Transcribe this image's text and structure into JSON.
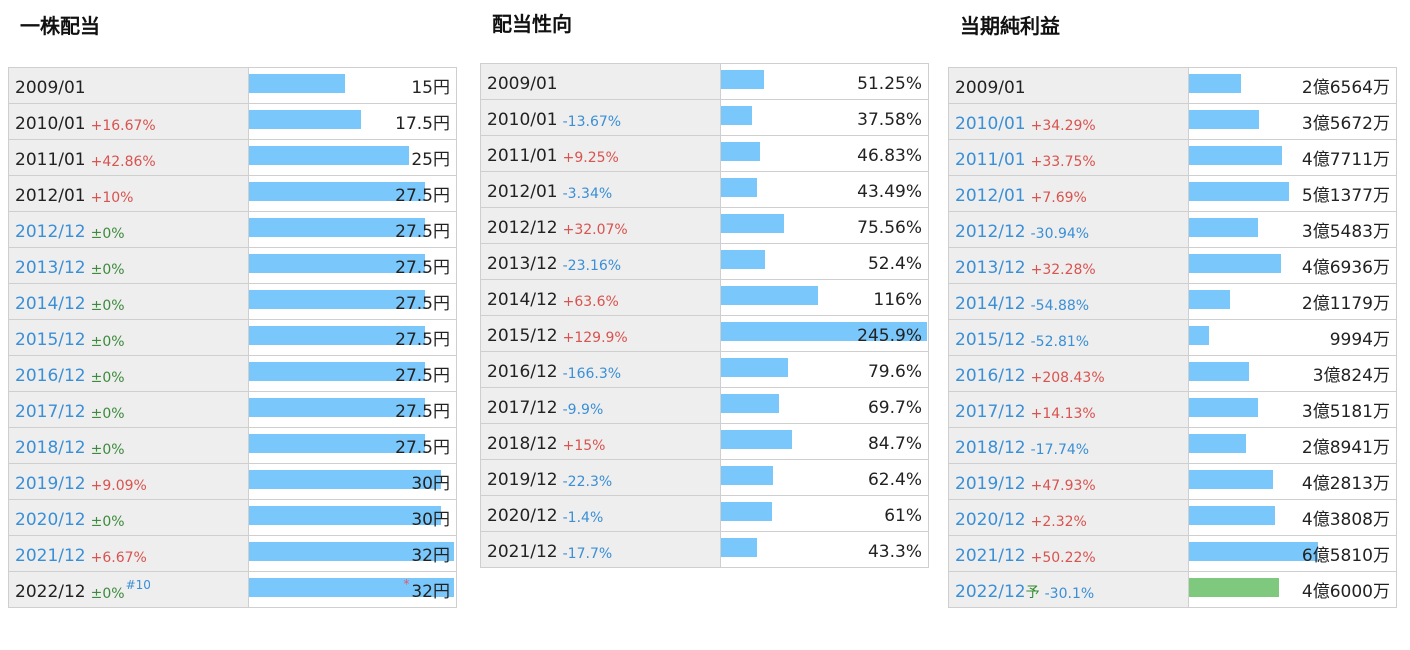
{
  "chart_data": [
    {
      "type": "table",
      "title": "一株配当",
      "max": 32,
      "rows": [
        {
          "date": "2009/01",
          "pct": "",
          "pct_type": "none",
          "value": 15,
          "text": "15円",
          "blue": false
        },
        {
          "date": "2010/01",
          "pct": "+16.67%",
          "pct_type": "up",
          "value": 17.5,
          "text": "17.5円",
          "blue": false
        },
        {
          "date": "2011/01",
          "pct": "+42.86%",
          "pct_type": "up",
          "value": 25,
          "text": "25円",
          "blue": false
        },
        {
          "date": "2012/01",
          "pct": "+10%",
          "pct_type": "up",
          "value": 27.5,
          "text": "27.5円",
          "blue": false
        },
        {
          "date": "2012/12",
          "pct": "±0%",
          "pct_type": "flat",
          "value": 27.5,
          "text": "27.5円",
          "blue": true
        },
        {
          "date": "2013/12",
          "pct": "±0%",
          "pct_type": "flat",
          "value": 27.5,
          "text": "27.5円",
          "blue": true
        },
        {
          "date": "2014/12",
          "pct": "±0%",
          "pct_type": "flat",
          "value": 27.5,
          "text": "27.5円",
          "blue": true
        },
        {
          "date": "2015/12",
          "pct": "±0%",
          "pct_type": "flat",
          "value": 27.5,
          "text": "27.5円",
          "blue": true
        },
        {
          "date": "2016/12",
          "pct": "±0%",
          "pct_type": "flat",
          "value": 27.5,
          "text": "27.5円",
          "blue": true
        },
        {
          "date": "2017/12",
          "pct": "±0%",
          "pct_type": "flat",
          "value": 27.5,
          "text": "27.5円",
          "blue": true
        },
        {
          "date": "2018/12",
          "pct": "±0%",
          "pct_type": "flat",
          "value": 27.5,
          "text": "27.5円",
          "blue": true
        },
        {
          "date": "2019/12",
          "pct": "+9.09%",
          "pct_type": "up",
          "value": 30,
          "text": "30円",
          "blue": true
        },
        {
          "date": "2020/12",
          "pct": "±0%",
          "pct_type": "flat",
          "value": 30,
          "text": "30円",
          "blue": true
        },
        {
          "date": "2021/12",
          "pct": "+6.67%",
          "pct_type": "up",
          "value": 32,
          "text": "32円",
          "blue": true
        },
        {
          "date": "2022/12",
          "pct": "±0%",
          "pct_type": "flat",
          "note": "#10",
          "value": 32,
          "text": "32円",
          "asterisk": "*",
          "blue": false
        }
      ]
    },
    {
      "type": "table",
      "title": "配当性向",
      "max": 245.9,
      "rows": [
        {
          "date": "2009/01",
          "pct": "",
          "pct_type": "none",
          "value": 51.25,
          "text": "51.25%"
        },
        {
          "date": "2010/01",
          "pct": "-13.67%",
          "pct_type": "down",
          "value": 37.58,
          "text": "37.58%"
        },
        {
          "date": "2011/01",
          "pct": "+9.25%",
          "pct_type": "up",
          "value": 46.83,
          "text": "46.83%"
        },
        {
          "date": "2012/01",
          "pct": "-3.34%",
          "pct_type": "down",
          "value": 43.49,
          "text": "43.49%"
        },
        {
          "date": "2012/12",
          "pct": "+32.07%",
          "pct_type": "up",
          "value": 75.56,
          "text": "75.56%"
        },
        {
          "date": "2013/12",
          "pct": "-23.16%",
          "pct_type": "down",
          "value": 52.4,
          "text": "52.4%"
        },
        {
          "date": "2014/12",
          "pct": "+63.6%",
          "pct_type": "up",
          "value": 116,
          "text": "116%"
        },
        {
          "date": "2015/12",
          "pct": "+129.9%",
          "pct_type": "up",
          "value": 245.9,
          "text": "245.9%"
        },
        {
          "date": "2016/12",
          "pct": "-166.3%",
          "pct_type": "down",
          "value": 79.6,
          "text": "79.6%"
        },
        {
          "date": "2017/12",
          "pct": "-9.9%",
          "pct_type": "down",
          "value": 69.7,
          "text": "69.7%"
        },
        {
          "date": "2018/12",
          "pct": "+15%",
          "pct_type": "up",
          "value": 84.7,
          "text": "84.7%"
        },
        {
          "date": "2019/12",
          "pct": "-22.3%",
          "pct_type": "down",
          "value": 62.4,
          "text": "62.4%"
        },
        {
          "date": "2020/12",
          "pct": "-1.4%",
          "pct_type": "down",
          "value": 61,
          "text": "61%"
        },
        {
          "date": "2021/12",
          "pct": "-17.7%",
          "pct_type": "down",
          "value": 43.3,
          "text": "43.3%"
        }
      ]
    },
    {
      "type": "table",
      "title": "当期純利益",
      "max": 106000,
      "rows": [
        {
          "date": "2009/01",
          "pct": "",
          "pct_type": "none",
          "value": 26564,
          "text": "2億6564万",
          "blue": false
        },
        {
          "date": "2010/01",
          "pct": "+34.29%",
          "pct_type": "up",
          "value": 35672,
          "text": "3億5672万",
          "blue": true
        },
        {
          "date": "2011/01",
          "pct": "+33.75%",
          "pct_type": "up",
          "value": 47711,
          "text": "4億7711万",
          "blue": true
        },
        {
          "date": "2012/01",
          "pct": "+7.69%",
          "pct_type": "up",
          "value": 51377,
          "text": "5億1377万",
          "blue": true
        },
        {
          "date": "2012/12",
          "pct": "-30.94%",
          "pct_type": "down",
          "value": 35483,
          "text": "3億5483万",
          "blue": true
        },
        {
          "date": "2013/12",
          "pct": "+32.28%",
          "pct_type": "up",
          "value": 46936,
          "text": "4億6936万",
          "blue": true
        },
        {
          "date": "2014/12",
          "pct": "-54.88%",
          "pct_type": "down",
          "value": 21179,
          "text": "2億1179万",
          "blue": true
        },
        {
          "date": "2015/12",
          "pct": "-52.81%",
          "pct_type": "down",
          "value": 9994,
          "text": "9994万",
          "blue": true
        },
        {
          "date": "2016/12",
          "pct": "+208.43%",
          "pct_type": "up",
          "value": 30824,
          "text": "3億824万",
          "blue": true
        },
        {
          "date": "2017/12",
          "pct": "+14.13%",
          "pct_type": "up",
          "value": 35181,
          "text": "3億5181万",
          "blue": true
        },
        {
          "date": "2018/12",
          "pct": "-17.74%",
          "pct_type": "down",
          "value": 28941,
          "text": "2億8941万",
          "blue": true
        },
        {
          "date": "2019/12",
          "pct": "+47.93%",
          "pct_type": "up",
          "value": 42813,
          "text": "4億2813万",
          "blue": true
        },
        {
          "date": "2020/12",
          "pct": "+2.32%",
          "pct_type": "up",
          "value": 43808,
          "text": "4億3808万",
          "blue": true
        },
        {
          "date": "2021/12",
          "pct": "+50.22%",
          "pct_type": "up",
          "value": 65810,
          "text": "6億5810万",
          "blue": true
        },
        {
          "date": "2022/12",
          "forecast": "予",
          "pct": "-30.1%",
          "pct_type": "down",
          "value": 46000,
          "text": "4億6000万",
          "blue": true,
          "bar_color": "green"
        }
      ]
    }
  ]
}
